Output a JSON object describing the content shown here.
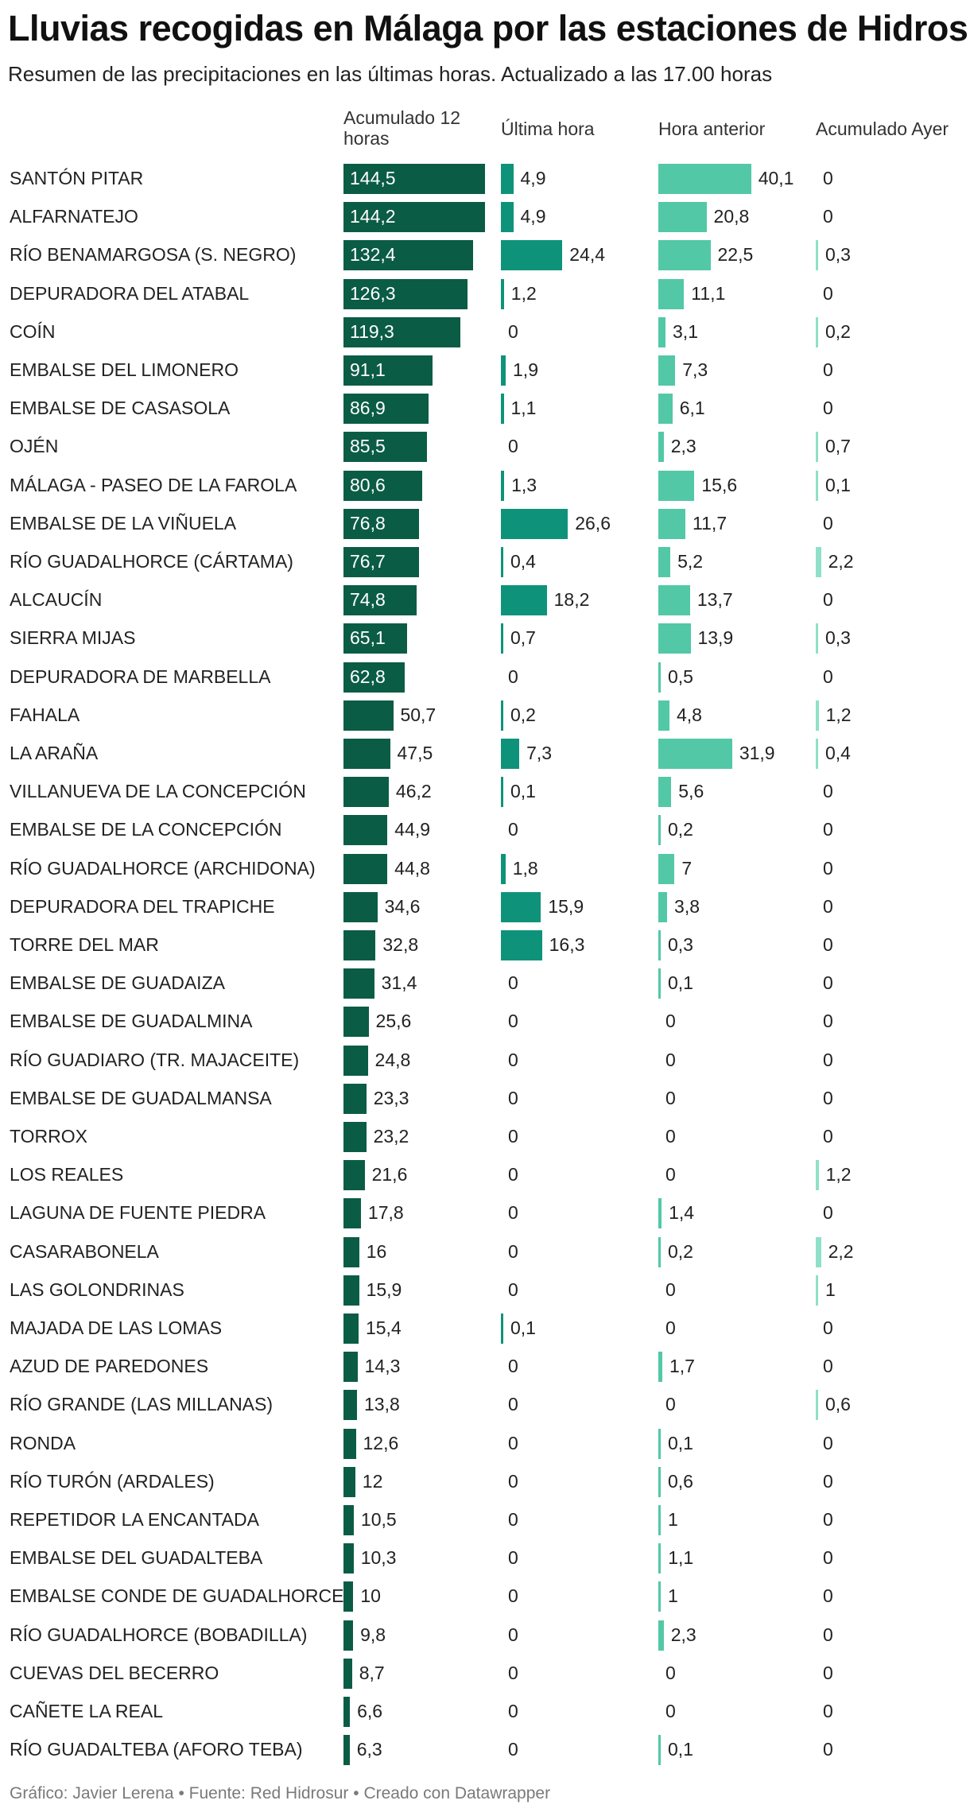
{
  "header": {
    "title": "Lluvias recogidas en Málaga por las estaciones de Hidrosur",
    "subtitle": "Resumen de las precipitaciones en las últimas horas. Actualizado a las 17.00 horas"
  },
  "footer": {
    "graphic": "Gráfico: Javier Lerena",
    "source": "Fuente: Red Hidrosur",
    "created": "Creado con Datawrapper"
  },
  "colors": {
    "acumulado": "#0b5c45",
    "ultima": "#0e937a",
    "anterior": "#52c8a6",
    "ayer": "#8fe0c8"
  },
  "chart_data": {
    "type": "table",
    "title": "Lluvias recogidas en Málaga por las estaciones de Hidrosur",
    "columns": [
      "Acumulado 12 horas",
      "Última hora",
      "Hora anterior",
      "Acumulado Ayer"
    ],
    "rows": [
      {
        "station": "SANTÓN PITAR",
        "values": [
          "144,5",
          "4,9",
          "40,1",
          "0"
        ]
      },
      {
        "station": "ALFARNATEJO",
        "values": [
          "144,2",
          "4,9",
          "20,8",
          "0"
        ]
      },
      {
        "station": "RÍO BENAMARGOSA (S. NEGRO)",
        "values": [
          "132,4",
          "24,4",
          "22,5",
          "0,3"
        ]
      },
      {
        "station": "DEPURADORA DEL ATABAL",
        "values": [
          "126,3",
          "1,2",
          "11,1",
          "0"
        ]
      },
      {
        "station": "COÍN",
        "values": [
          "119,3",
          "0",
          "3,1",
          "0,2"
        ]
      },
      {
        "station": "EMBALSE DEL LIMONERO",
        "values": [
          "91,1",
          "1,9",
          "7,3",
          "0"
        ]
      },
      {
        "station": "EMBALSE DE CASASOLA",
        "values": [
          "86,9",
          "1,1",
          "6,1",
          "0"
        ]
      },
      {
        "station": "OJÉN",
        "values": [
          "85,5",
          "0",
          "2,3",
          "0,7"
        ]
      },
      {
        "station": "MÁLAGA - PASEO DE LA FAROLA",
        "values": [
          "80,6",
          "1,3",
          "15,6",
          "0,1"
        ]
      },
      {
        "station": "EMBALSE DE LA VIÑUELA",
        "values": [
          "76,8",
          "26,6",
          "11,7",
          "0"
        ]
      },
      {
        "station": "RÍO GUADALHORCE (CÁRTAMA)",
        "values": [
          "76,7",
          "0,4",
          "5,2",
          "2,2"
        ]
      },
      {
        "station": "ALCAUCÍN",
        "values": [
          "74,8",
          "18,2",
          "13,7",
          "0"
        ]
      },
      {
        "station": "SIERRA MIJAS",
        "values": [
          "65,1",
          "0,7",
          "13,9",
          "0,3"
        ]
      },
      {
        "station": "DEPURADORA DE MARBELLA",
        "values": [
          "62,8",
          "0",
          "0,5",
          "0"
        ]
      },
      {
        "station": "FAHALA",
        "values": [
          "50,7",
          "0,2",
          "4,8",
          "1,2"
        ]
      },
      {
        "station": "LA ARAÑA",
        "values": [
          "47,5",
          "7,3",
          "31,9",
          "0,4"
        ]
      },
      {
        "station": "VILLANUEVA DE LA CONCEPCIÓN",
        "values": [
          "46,2",
          "0,1",
          "5,6",
          "0"
        ]
      },
      {
        "station": "EMBALSE DE LA CONCEPCIÓN",
        "values": [
          "44,9",
          "0",
          "0,2",
          "0"
        ]
      },
      {
        "station": "RÍO GUADALHORCE (ARCHIDONA)",
        "values": [
          "44,8",
          "1,8",
          "7",
          "0"
        ]
      },
      {
        "station": "DEPURADORA DEL TRAPICHE",
        "values": [
          "34,6",
          "15,9",
          "3,8",
          "0"
        ]
      },
      {
        "station": "TORRE DEL MAR",
        "values": [
          "32,8",
          "16,3",
          "0,3",
          "0"
        ]
      },
      {
        "station": "EMBALSE DE GUADAIZA",
        "values": [
          "31,4",
          "0",
          "0,1",
          "0"
        ]
      },
      {
        "station": "EMBALSE DE GUADALMINA",
        "values": [
          "25,6",
          "0",
          "0",
          "0"
        ]
      },
      {
        "station": "RÍO GUADIARO (TR. MAJACEITE)",
        "values": [
          "24,8",
          "0",
          "0",
          "0"
        ]
      },
      {
        "station": "EMBALSE DE GUADALMANSA",
        "values": [
          "23,3",
          "0",
          "0",
          "0"
        ]
      },
      {
        "station": "TORROX",
        "values": [
          "23,2",
          "0",
          "0",
          "0"
        ]
      },
      {
        "station": "LOS REALES",
        "values": [
          "21,6",
          "0",
          "0",
          "1,2"
        ]
      },
      {
        "station": "LAGUNA DE FUENTE PIEDRA",
        "values": [
          "17,8",
          "0",
          "1,4",
          "0"
        ]
      },
      {
        "station": "CASARABONELA",
        "values": [
          "16",
          "0",
          "0,2",
          "2,2"
        ]
      },
      {
        "station": "LAS GOLONDRINAS",
        "values": [
          "15,9",
          "0",
          "0",
          "1"
        ]
      },
      {
        "station": "MAJADA DE LAS LOMAS",
        "values": [
          "15,4",
          "0,1",
          "0",
          "0"
        ]
      },
      {
        "station": "AZUD DE PAREDONES",
        "values": [
          "14,3",
          "0",
          "1,7",
          "0"
        ]
      },
      {
        "station": "RÍO GRANDE (LAS MILLANAS)",
        "values": [
          "13,8",
          "0",
          "0",
          "0,6"
        ]
      },
      {
        "station": "RONDA",
        "values": [
          "12,6",
          "0",
          "0,1",
          "0"
        ]
      },
      {
        "station": "RÍO TURÓN (ARDALES)",
        "values": [
          "12",
          "0",
          "0,6",
          "0"
        ]
      },
      {
        "station": "REPETIDOR LA ENCANTADA",
        "values": [
          "10,5",
          "0",
          "1",
          "0"
        ]
      },
      {
        "station": "EMBALSE DEL GUADALTEBA",
        "values": [
          "10,3",
          "0",
          "1,1",
          "0"
        ]
      },
      {
        "station": "EMBALSE CONDE DE GUADALHORCE",
        "values": [
          "10",
          "0",
          "1",
          "0"
        ]
      },
      {
        "station": "RÍO GUADALHORCE (BOBADILLA)",
        "values": [
          "9,8",
          "0",
          "2,3",
          "0"
        ]
      },
      {
        "station": "CUEVAS DEL BECERRO",
        "values": [
          "8,7",
          "0",
          "0",
          "0"
        ]
      },
      {
        "station": "CAÑETE LA REAL",
        "values": [
          "6,6",
          "0",
          "0",
          "0"
        ]
      },
      {
        "station": "RÍO GUADALTEBA (AFORO TEBA)",
        "values": [
          "6,3",
          "0",
          "0,1",
          "0"
        ]
      }
    ]
  }
}
